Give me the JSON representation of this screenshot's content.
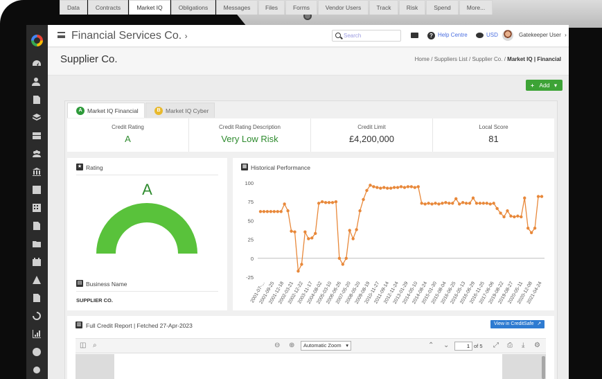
{
  "app": {
    "company_name": "Financial Services Co.",
    "company_chevron": "›",
    "search_placeholder": "Search",
    "help_label": "Help Centre",
    "currency_label": "USD",
    "user_name": "Gatekeeper User",
    "user_chevron": "›"
  },
  "header": {
    "title": "Supplier Co.",
    "breadcrumb": [
      "Home",
      "Suppliers List",
      "Supplier Co."
    ],
    "breadcrumb_current": "Market IQ | Financial",
    "separator": "/"
  },
  "tabs": [
    "Data",
    "Contracts",
    "Market IQ",
    "Obligations",
    "Messages",
    "Files",
    "Forms",
    "Vendor Users",
    "Track",
    "Risk",
    "Spend",
    "More..."
  ],
  "active_tab": "Market IQ",
  "add_button": {
    "label": "Add",
    "plus": "+",
    "caret": "▾"
  },
  "subtabs": [
    {
      "label": "Market IQ Financial",
      "badge": "A",
      "badge_color": "#2e9a3a"
    },
    {
      "label": "Market IQ Cyber",
      "badge": "B",
      "badge_color": "#e8b92d"
    }
  ],
  "kpis": [
    {
      "label": "Credit Rating",
      "value": "A",
      "color": "#2e8b2e"
    },
    {
      "label": "Credit Rating Description",
      "value": "Very Low Risk",
      "color": "#2e8b2e"
    },
    {
      "label": "Credit Limit",
      "value": "£4,200,000",
      "color": "#333333"
    },
    {
      "label": "Local Score",
      "value": "81",
      "color": "#333333"
    }
  ],
  "rating_card": {
    "title": "Rating",
    "letter": "A",
    "gauge_fraction": 1.0,
    "gauge_color": "#59c23b",
    "business_name_label": "Business Name",
    "business_name": "SUPPLIER CO."
  },
  "chart_card": {
    "title": "Historical Performance"
  },
  "chart_data": {
    "type": "line",
    "title": "",
    "xlabel": "",
    "ylabel": "",
    "ylim": [
      -25,
      100
    ],
    "yticks": [
      100,
      75,
      50,
      25,
      0,
      -25
    ],
    "color": "#e8883a",
    "x_tick_labels": [
      "2001-07-...",
      "2001-09-25",
      "2001-12-18",
      "2002-03-21",
      "2002-12-22",
      "2003-11-17",
      "2004-08-02",
      "2005-03-10",
      "2006-06-26",
      "2007-05-20",
      "2008-05-20",
      "2009-08-19",
      "2010-11-27",
      "2011-09-14",
      "2012-11-24",
      "2013-01-29",
      "2014-05-10",
      "2014-08-24",
      "2015-01-30",
      "2015-08-04",
      "2016-06-25",
      "2016-05-13",
      "2016-06-29",
      "2016-11-25",
      "2017-06-06",
      "2019-08-22",
      "2019-08-27",
      "2020-05-11",
      "2020-12-08",
      "2021-04-24"
    ],
    "values": [
      62,
      62,
      62,
      62,
      62,
      62,
      62,
      72,
      63,
      36,
      35,
      -17,
      -8,
      35,
      26,
      27,
      33,
      73,
      75,
      74,
      74,
      74,
      75,
      0,
      -8,
      0,
      37,
      26,
      38,
      63,
      78,
      90,
      97,
      95,
      94,
      93,
      94,
      93,
      93,
      94,
      94,
      95,
      94,
      95,
      95,
      94,
      95,
      73,
      72,
      73,
      72,
      73,
      72,
      73,
      74,
      73,
      73,
      79,
      72,
      74,
      73,
      73,
      80,
      73,
      73,
      73,
      73,
      72,
      73,
      66,
      60,
      55,
      63,
      56,
      55,
      56,
      55,
      80,
      40,
      34,
      40,
      82,
      82
    ]
  },
  "full_report": {
    "title": "Full Credit Report | Fetched 27-Apr-2023",
    "view_button": "View in CreditSafe",
    "zoom": "Automatic Zoom",
    "page": "1",
    "of_pages": "of 5"
  }
}
